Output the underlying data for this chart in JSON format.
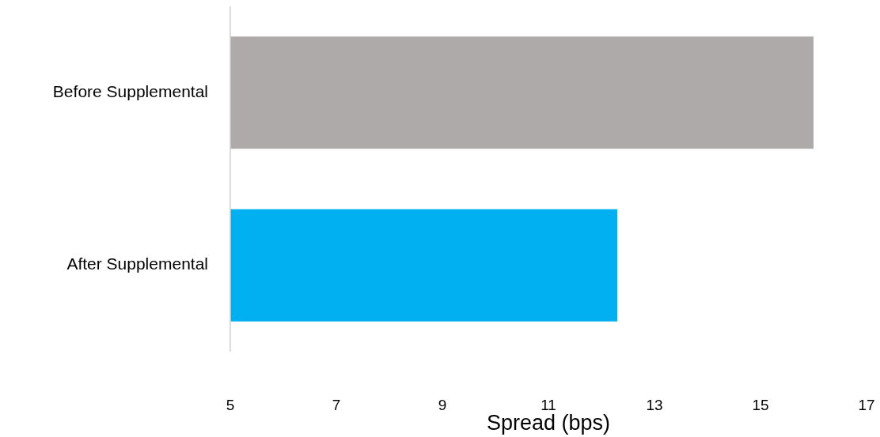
{
  "chart_data": {
    "type": "bar",
    "orientation": "horizontal",
    "xlabel": "Spread (bps)",
    "categories": [
      "Before Supplemental",
      "After Supplemental"
    ],
    "values": [
      16.0,
      12.3
    ],
    "colors": [
      "#aeaaaa",
      "#00b0f0"
    ],
    "xlim": [
      5,
      17
    ],
    "xticks": [
      5,
      7,
      9,
      11,
      13,
      15,
      17
    ],
    "grid": false
  }
}
